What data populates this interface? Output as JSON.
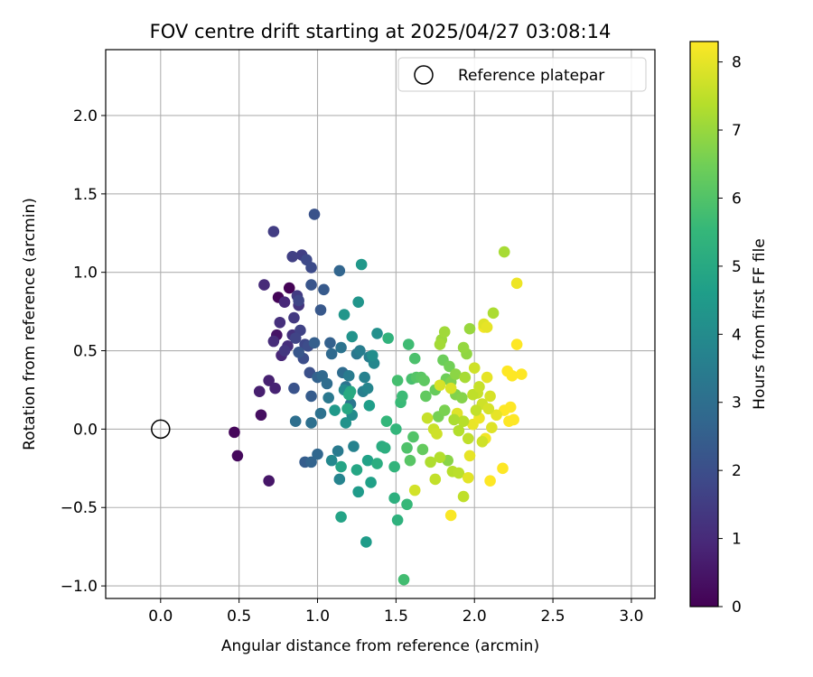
{
  "chart_data": {
    "type": "scatter",
    "title": "FOV centre drift starting at 2025/04/27 03:08:14",
    "xlabel": "Angular distance from reference (arcmin)",
    "ylabel": "Rotation from reference (arcmin)",
    "xlim": [
      -0.35,
      3.15
    ],
    "ylim": [
      -1.08,
      2.42
    ],
    "xticks": [
      0.0,
      0.5,
      1.0,
      1.5,
      2.0,
      2.5,
      3.0
    ],
    "xtick_labels": [
      "0.0",
      "0.5",
      "1.0",
      "1.5",
      "2.0",
      "2.5",
      "3.0"
    ],
    "yticks": [
      -1.0,
      -0.5,
      0.0,
      0.5,
      1.0,
      1.5,
      2.0
    ],
    "ytick_labels": [
      "−1.0",
      "−0.5",
      "0.0",
      "0.5",
      "1.0",
      "1.5",
      "2.0"
    ],
    "grid": true,
    "legend": {
      "placement": "top-right",
      "entries": [
        "Reference platepar"
      ]
    },
    "reference_point": {
      "x": 0.0,
      "y": 0.0
    },
    "colorbar": {
      "label": "Hours from first FF file",
      "colormap": "viridis",
      "range": [
        0,
        8.3
      ],
      "ticks": [
        0,
        1,
        2,
        3,
        4,
        5,
        6,
        7,
        8
      ],
      "tick_labels": [
        "0",
        "1",
        "2",
        "3",
        "4",
        "5",
        "6",
        "7",
        "8"
      ]
    },
    "points": [
      [
        0.82,
        0.9,
        0.05
      ],
      [
        0.75,
        0.84,
        0.1
      ],
      [
        0.47,
        -0.02,
        0.15
      ],
      [
        0.49,
        -0.17,
        0.2
      ],
      [
        0.64,
        0.09,
        0.3
      ],
      [
        0.69,
        -0.33,
        0.5
      ],
      [
        0.74,
        0.6,
        0.45
      ],
      [
        0.63,
        0.24,
        0.7
      ],
      [
        0.69,
        0.31,
        0.75
      ],
      [
        0.73,
        0.26,
        0.8
      ],
      [
        0.77,
        0.47,
        0.9
      ],
      [
        0.79,
        0.81,
        0.95
      ],
      [
        0.66,
        0.92,
        1.0
      ],
      [
        0.72,
        0.56,
        1.05
      ],
      [
        0.81,
        0.53,
        1.1
      ],
      [
        0.76,
        0.68,
        1.15
      ],
      [
        0.84,
        0.6,
        1.2
      ],
      [
        0.88,
        0.79,
        1.25
      ],
      [
        0.79,
        0.5,
        1.3
      ],
      [
        0.85,
        0.71,
        1.4
      ],
      [
        0.87,
        0.85,
        1.45
      ],
      [
        0.72,
        1.26,
        1.5
      ],
      [
        0.9,
        1.11,
        1.55
      ],
      [
        0.84,
        1.1,
        1.6
      ],
      [
        0.89,
        0.63,
        1.65
      ],
      [
        0.86,
        0.58,
        1.7
      ],
      [
        0.88,
        0.82,
        1.75
      ],
      [
        0.92,
        0.54,
        1.8
      ],
      [
        0.93,
        1.08,
        1.85
      ],
      [
        0.96,
        1.03,
        1.9
      ],
      [
        0.94,
        0.53,
        1.95
      ],
      [
        0.91,
        0.45,
        2.0
      ],
      [
        0.95,
        0.36,
        2.05
      ],
      [
        0.98,
        1.37,
        2.1
      ],
      [
        0.85,
        0.26,
        2.15
      ],
      [
        0.96,
        0.92,
        2.2
      ],
      [
        0.88,
        0.49,
        2.25
      ],
      [
        1.02,
        0.76,
        2.3
      ],
      [
        1.04,
        0.89,
        2.35
      ],
      [
        0.96,
        0.21,
        2.4
      ],
      [
        0.92,
        -0.21,
        2.45
      ],
      [
        0.98,
        0.55,
        2.5
      ],
      [
        1.08,
        0.55,
        2.55
      ],
      [
        1.0,
        0.33,
        2.6
      ],
      [
        0.96,
        -0.21,
        2.65
      ],
      [
        1.14,
        1.01,
        2.7
      ],
      [
        1.0,
        -0.16,
        2.75
      ],
      [
        1.03,
        0.34,
        2.8
      ],
      [
        1.09,
        0.48,
        2.85
      ],
      [
        1.16,
        0.36,
        2.9
      ],
      [
        1.06,
        0.29,
        2.95
      ],
      [
        0.86,
        0.05,
        3.0
      ],
      [
        0.96,
        0.04,
        3.05
      ],
      [
        1.02,
        0.1,
        3.1
      ],
      [
        1.15,
        0.52,
        3.15
      ],
      [
        1.18,
        0.27,
        3.2
      ],
      [
        1.21,
        0.16,
        3.25
      ],
      [
        1.25,
        0.48,
        3.3
      ],
      [
        1.07,
        0.2,
        3.35
      ],
      [
        1.13,
        -0.14,
        3.4
      ],
      [
        1.2,
        0.34,
        3.45
      ],
      [
        1.27,
        0.5,
        3.5
      ],
      [
        1.33,
        0.46,
        3.55
      ],
      [
        1.29,
        0.24,
        3.6
      ],
      [
        1.3,
        0.33,
        3.65
      ],
      [
        1.23,
        -0.11,
        3.7
      ],
      [
        1.14,
        -0.32,
        3.75
      ],
      [
        1.32,
        0.26,
        3.8
      ],
      [
        1.36,
        0.42,
        3.85
      ],
      [
        1.09,
        -0.2,
        3.9
      ],
      [
        1.17,
        0.25,
        3.95
      ],
      [
        1.22,
        0.09,
        4.0
      ],
      [
        1.35,
        0.47,
        4.1
      ],
      [
        1.38,
        0.61,
        4.15
      ],
      [
        1.18,
        0.04,
        4.2
      ],
      [
        1.22,
        0.59,
        4.25
      ],
      [
        1.26,
        0.81,
        4.3
      ],
      [
        1.17,
        0.73,
        4.35
      ],
      [
        1.28,
        1.05,
        4.4
      ],
      [
        1.11,
        0.12,
        4.45
      ],
      [
        1.26,
        -0.4,
        4.5
      ],
      [
        1.31,
        -0.72,
        4.55
      ],
      [
        1.33,
        0.15,
        4.6
      ],
      [
        1.34,
        -0.34,
        4.7
      ],
      [
        1.32,
        -0.2,
        4.75
      ],
      [
        1.15,
        -0.56,
        4.8
      ],
      [
        1.15,
        -0.24,
        4.85
      ],
      [
        1.25,
        -0.26,
        4.9
      ],
      [
        1.19,
        0.13,
        4.95
      ],
      [
        1.21,
        0.24,
        5.0
      ],
      [
        1.2,
        0.22,
        5.05
      ],
      [
        1.41,
        -0.11,
        5.1
      ],
      [
        1.38,
        -0.22,
        5.15
      ],
      [
        1.43,
        -0.12,
        5.2
      ],
      [
        1.49,
        -0.44,
        5.25
      ],
      [
        1.51,
        -0.58,
        5.3
      ],
      [
        1.45,
        0.58,
        5.35
      ],
      [
        1.49,
        -0.24,
        5.4
      ],
      [
        1.5,
        0.0,
        5.45
      ],
      [
        1.44,
        0.05,
        5.5
      ],
      [
        1.57,
        -0.48,
        5.55
      ],
      [
        1.53,
        0.17,
        5.6
      ],
      [
        1.54,
        0.21,
        5.65
      ],
      [
        1.58,
        0.54,
        5.7
      ],
      [
        1.55,
        -0.96,
        5.75
      ],
      [
        1.51,
        0.31,
        5.8
      ],
      [
        1.6,
        0.32,
        5.85
      ],
      [
        1.62,
        0.45,
        5.9
      ],
      [
        1.57,
        -0.12,
        5.95
      ],
      [
        1.61,
        -0.05,
        6.0
      ],
      [
        1.63,
        0.33,
        6.05
      ],
      [
        1.59,
        -0.2,
        6.1
      ],
      [
        1.66,
        0.33,
        6.15
      ],
      [
        1.68,
        0.31,
        6.2
      ],
      [
        1.69,
        0.21,
        6.25
      ],
      [
        1.67,
        -0.13,
        6.3
      ],
      [
        1.75,
        0.25,
        6.35
      ],
      [
        1.8,
        0.44,
        6.4
      ],
      [
        1.82,
        0.32,
        6.45
      ],
      [
        1.84,
        0.4,
        6.5
      ],
      [
        1.77,
        0.08,
        6.55
      ],
      [
        1.81,
        0.12,
        6.6
      ],
      [
        1.85,
        0.3,
        6.65
      ],
      [
        1.88,
        0.22,
        6.7
      ],
      [
        1.92,
        0.2,
        6.75
      ],
      [
        1.83,
        -0.2,
        6.8
      ],
      [
        1.88,
        0.35,
        6.85
      ],
      [
        1.95,
        0.48,
        6.9
      ],
      [
        1.93,
        0.52,
        6.95
      ],
      [
        1.97,
        0.64,
        7.0
      ],
      [
        1.79,
        0.57,
        7.05
      ],
      [
        1.81,
        0.62,
        7.1
      ],
      [
        1.78,
        0.54,
        7.15
      ],
      [
        2.19,
        1.13,
        7.2
      ],
      [
        2.12,
        0.74,
        7.25
      ],
      [
        1.72,
        -0.21,
        7.3
      ],
      [
        1.78,
        -0.18,
        7.35
      ],
      [
        1.86,
        -0.27,
        7.4
      ],
      [
        1.9,
        -0.28,
        7.45
      ],
      [
        1.93,
        -0.43,
        7.5
      ],
      [
        1.75,
        -0.32,
        7.55
      ],
      [
        1.7,
        0.07,
        7.6
      ],
      [
        1.74,
        0.0,
        7.65
      ],
      [
        1.76,
        -0.03,
        7.7
      ],
      [
        1.62,
        -0.39,
        7.75
      ],
      [
        1.78,
        0.28,
        7.8
      ],
      [
        1.85,
        0.26,
        7.85
      ],
      [
        1.89,
        0.1,
        7.9
      ],
      [
        1.96,
        -0.31,
        7.95
      ],
      [
        1.97,
        -0.17,
        8.0
      ],
      [
        1.99,
        0.03,
        8.05
      ],
      [
        2.03,
        0.07,
        8.1
      ],
      [
        2.07,
        -0.06,
        8.15
      ],
      [
        2.06,
        0.65,
        8.2
      ],
      [
        1.85,
        -0.55,
        8.25
      ],
      [
        2.1,
        -0.33,
        8.3
      ],
      [
        2.18,
        -0.25,
        8.3
      ],
      [
        2.21,
        0.37,
        8.3
      ],
      [
        2.24,
        0.34,
        8.3
      ],
      [
        2.27,
        0.54,
        8.3
      ],
      [
        2.27,
        0.93,
        8.1
      ],
      [
        2.3,
        0.35,
        8.3
      ],
      [
        2.22,
        0.05,
        8.3
      ],
      [
        2.25,
        0.06,
        8.3
      ],
      [
        2.19,
        0.12,
        8.3
      ],
      [
        2.23,
        0.14,
        8.3
      ],
      [
        2.08,
        0.33,
        8.0
      ],
      [
        2.0,
        0.39,
        7.7
      ],
      [
        2.02,
        0.23,
        7.6
      ],
      [
        2.05,
        0.16,
        7.7
      ],
      [
        1.99,
        0.22,
        7.5
      ],
      [
        1.93,
        0.05,
        7.4
      ],
      [
        2.11,
        0.01,
        7.9
      ],
      [
        2.14,
        0.09,
        8.0
      ],
      [
        2.1,
        0.21,
        7.8
      ],
      [
        2.03,
        0.27,
        7.6
      ],
      [
        1.96,
        -0.06,
        7.5
      ],
      [
        2.01,
        0.12,
        7.55
      ],
      [
        2.09,
        0.13,
        7.8
      ],
      [
        2.06,
        0.67,
        7.9
      ],
      [
        2.08,
        0.65,
        8.0
      ],
      [
        2.05,
        -0.08,
        7.7
      ],
      [
        1.9,
        -0.01,
        7.35
      ],
      [
        1.87,
        0.06,
        7.25
      ],
      [
        1.94,
        0.33,
        7.2
      ]
    ]
  }
}
